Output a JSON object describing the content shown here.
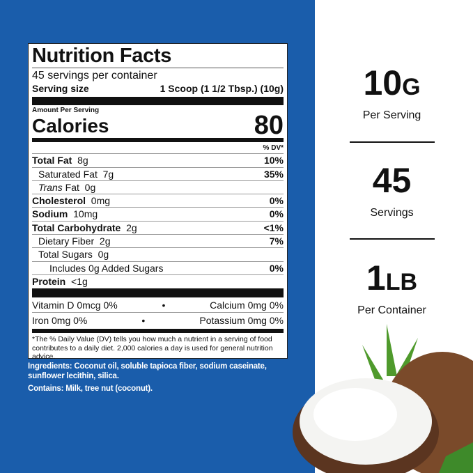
{
  "label": {
    "title": "Nutrition Facts",
    "servings": "45 servings per container",
    "serving_size_label": "Serving size",
    "serving_size_value": "1 Scoop (1 1/2 Tbsp.) (10g)",
    "amount_per_serving": "Amount Per Serving",
    "calories_label": "Calories",
    "calories_value": "80",
    "dv_header": "% DV*",
    "rows": [
      {
        "name": "Total Fat",
        "amount": "8g",
        "dv": "10%"
      },
      {
        "name": "Saturated Fat",
        "amount": "7g",
        "dv": "35%"
      },
      {
        "name": "Trans",
        "name2": "Fat",
        "amount": "0g",
        "dv": ""
      },
      {
        "name": "Cholesterol",
        "amount": "0mg",
        "dv": "0%"
      },
      {
        "name": "Sodium",
        "amount": "10mg",
        "dv": "0%"
      },
      {
        "name": "Total Carbohydrate",
        "amount": "2g",
        "dv": "<1%"
      },
      {
        "name": "Dietary Fiber",
        "amount": "2g",
        "dv": "7%"
      },
      {
        "name": "Total Sugars",
        "amount": "0g",
        "dv": ""
      },
      {
        "name": "Includes 0g Added Sugars",
        "amount": "",
        "dv": "0%"
      },
      {
        "name": "Protein",
        "amount": "<1g",
        "dv": ""
      }
    ],
    "micros": [
      {
        "left": "Vitamin D  0mcg  0%",
        "right": "Calcium  0mg  0%"
      },
      {
        "left": "Iron  0mg  0%",
        "right": "Potassium  0mg  0%"
      }
    ],
    "footnote": "*The % Daily Value (DV) tells you how much a nutrient in a serving of food contributes to a daily diet. 2,000 calories a day is used for general nutrition advice."
  },
  "ingredients": "Ingredients: Coconut oil, soluble tapioca fiber, sodium caseinate, sunflower lecithin, silica.",
  "contains": "Contains: Milk, tree nut (coconut).",
  "stats": [
    {
      "value": "10",
      "unit": "G",
      "label": "Per Serving"
    },
    {
      "value": "45",
      "unit": "",
      "label": "Servings"
    },
    {
      "value": "1",
      "unit": "LB",
      "label": "Per Container"
    }
  ],
  "colors": {
    "background_blue": "#1a5dab"
  }
}
